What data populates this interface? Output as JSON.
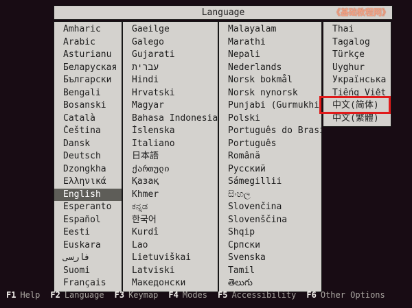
{
  "window": {
    "title": "Language",
    "watermark": "《基础教程网》"
  },
  "colors": {
    "background": "#180c14",
    "panel": "#d4d2ce",
    "panel_border": "#161616",
    "text": "#1c1c1c",
    "highlight_bg": "#5e5d58",
    "highlight_text": "#ffffff",
    "annotation": "#e01b1b",
    "watermark": "#f0a285",
    "fkey": "#f5f2ee",
    "flabel": "#aaa6a1"
  },
  "language_list": {
    "columns": [
      {
        "items": [
          "Amharic",
          "Arabic",
          "Asturianu",
          "Беларуская",
          "Български",
          "Bengali",
          "Bosanski",
          "Català",
          "Čeština",
          "Dansk",
          "Deutsch",
          "Dzongkha",
          "Ελληνικά",
          "English",
          "Esperanto",
          "Español",
          "Eesti",
          "Euskara",
          "فارسی",
          "Suomi",
          "Français"
        ]
      },
      {
        "items": [
          "Gaeilge",
          "Galego",
          "Gujarati",
          "עברית",
          "Hindi",
          "Hrvatski",
          "Magyar",
          "Bahasa Indonesia",
          "Íslenska",
          "Italiano",
          "日本語",
          "ქართული",
          "Қазақ",
          "Khmer",
          "ಕನ್ನಡ",
          "한국어",
          "Kurdî",
          "Lao",
          "Lietuviškai",
          "Latviski",
          "Македонски"
        ]
      },
      {
        "items": [
          "Malayalam",
          "Marathi",
          "Nepali",
          "Nederlands",
          "Norsk bokmål",
          "Norsk nynorsk",
          "Punjabi (Gurmukhi)",
          "Polski",
          "Português do Brasil",
          "Português",
          "Română",
          "Русский",
          "Sámegillii",
          "සිංහල",
          "Slovenčina",
          "Slovenščina",
          "Shqip",
          "Српски",
          "Svenska",
          "Tamil",
          "తెలుగు"
        ]
      },
      {
        "items": [
          "Thai",
          "Tagalog",
          "Türkçe",
          "Uyghur",
          "Українська",
          "Tiếng Việt",
          "中文(简体)",
          "中文(繁體)"
        ]
      }
    ],
    "selected": {
      "column": 0,
      "index": 13,
      "label": "English"
    },
    "annotated": {
      "column": 3,
      "index": 6,
      "label": "中文(简体)"
    }
  },
  "function_bar": {
    "items": [
      {
        "key": "F1",
        "label": "Help"
      },
      {
        "key": "F2",
        "label": "Language"
      },
      {
        "key": "F3",
        "label": "Keymap"
      },
      {
        "key": "F4",
        "label": "Modes"
      },
      {
        "key": "F5",
        "label": "Accessibility"
      },
      {
        "key": "F6",
        "label": "Other Options"
      }
    ]
  }
}
